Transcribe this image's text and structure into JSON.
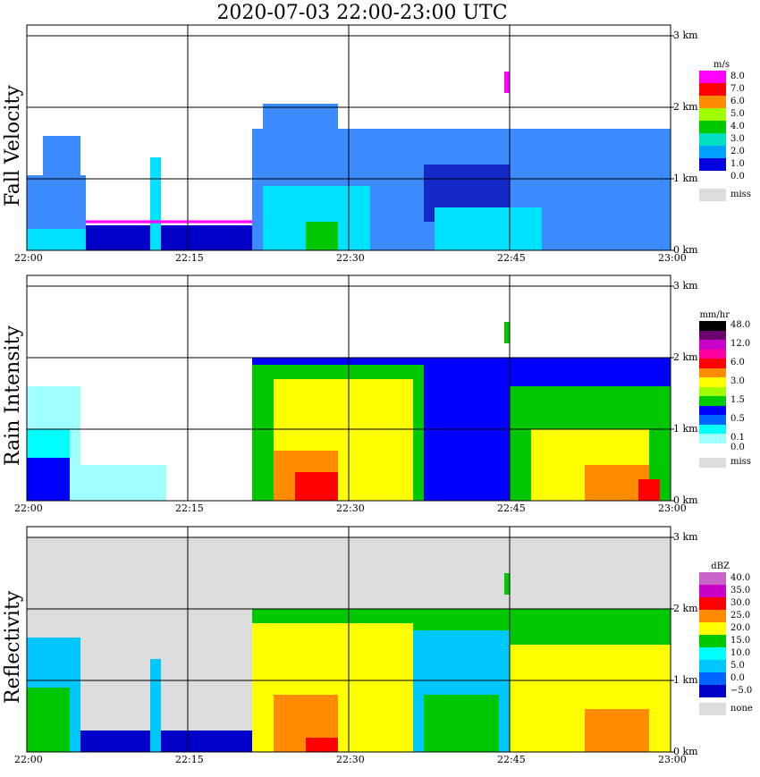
{
  "title": "2020-07-03   22:00-23:00 UTC",
  "chart_data": [
    {
      "type": "heatmap",
      "ylabel": "Fall Velocity",
      "unit": "m/s",
      "x_ticks": [
        "22:00",
        "22:15",
        "22:30",
        "22:45",
        "23:00"
      ],
      "y_ticks": [
        "0 km",
        "1 km",
        "2 km",
        "3 km"
      ],
      "xlim": [
        "22:00",
        "23:00"
      ],
      "ylim_km": [
        0,
        3
      ],
      "grid": true,
      "legend": [
        {
          "label": "8.0",
          "color": "#ff00ff"
        },
        {
          "label": "7.0",
          "color": "#ff0000"
        },
        {
          "label": "6.0",
          "color": "#ff8c00"
        },
        {
          "label": "5.0",
          "color": "#a0ff00"
        },
        {
          "label": "4.0",
          "color": "#00c800"
        },
        {
          "label": "3.0",
          "color": "#00e0c0"
        },
        {
          "label": "2.0",
          "color": "#00a0ff"
        },
        {
          "label": "1.0",
          "color": "#0000e0"
        },
        {
          "label": "0.0",
          "color": "#ffffff"
        },
        {
          "label": "miss",
          "color": "#dcdcdc"
        }
      ],
      "background": "#ffffff",
      "fills": [
        {
          "t0": 0,
          "t1": 5.5,
          "h0": 0,
          "h1": 1.05,
          "color": "#3c8cff"
        },
        {
          "t0": 1.5,
          "t1": 5,
          "h0": 0.6,
          "h1": 1.6,
          "color": "#3c8cff"
        },
        {
          "t0": 0,
          "t1": 6,
          "h0": 0,
          "h1": 0.3,
          "color": "#00e0ff"
        },
        {
          "t0": 5.5,
          "t1": 21,
          "h0": 0,
          "h1": 0.35,
          "color": "#0000c8"
        },
        {
          "t0": 11.5,
          "t1": 12.5,
          "h0": 0,
          "h1": 1.3,
          "color": "#00e0ff"
        },
        {
          "t0": 5.5,
          "t1": 21,
          "h0": 0.38,
          "h1": 0.42,
          "color": "#ff00ff"
        },
        {
          "t0": 21,
          "t1": 60,
          "h0": 0,
          "h1": 1.7,
          "color": "#3c8cff"
        },
        {
          "t0": 22,
          "t1": 29,
          "h0": 0.9,
          "h1": 2.05,
          "color": "#3c8cff"
        },
        {
          "t0": 37,
          "t1": 45,
          "h0": 0.4,
          "h1": 1.2,
          "color": "#1428c8"
        },
        {
          "t0": 22,
          "t1": 32,
          "h0": 0,
          "h1": 0.9,
          "color": "#00e0ff"
        },
        {
          "t0": 38,
          "t1": 48,
          "h0": 0,
          "h1": 0.6,
          "color": "#00e0ff"
        },
        {
          "t0": 26,
          "t1": 29,
          "h0": 0,
          "h1": 0.4,
          "color": "#00c800"
        },
        {
          "t0": 44.5,
          "t1": 45,
          "h0": 2.2,
          "h1": 2.5,
          "color": "#ff00ff"
        }
      ]
    },
    {
      "type": "heatmap",
      "ylabel": "Rain Intensity",
      "unit": "mm/hr",
      "x_ticks": [
        "22:00",
        "22:15",
        "22:30",
        "22:45",
        "23:00"
      ],
      "y_ticks": [
        "0 km",
        "1 km",
        "2 km",
        "3 km"
      ],
      "xlim": [
        "22:00",
        "23:00"
      ],
      "ylim_km": [
        0,
        3
      ],
      "grid": true,
      "legend": [
        {
          "label": "48.0",
          "color": "#000000"
        },
        {
          "label": "",
          "color": "#6e006e"
        },
        {
          "label": "12.0",
          "color": "#c800c8"
        },
        {
          "label": "",
          "color": "#ff00a0"
        },
        {
          "label": "6.0",
          "color": "#ff0000"
        },
        {
          "label": "",
          "color": "#ff8c00"
        },
        {
          "label": "3.0",
          "color": "#ffff00"
        },
        {
          "label": "",
          "color": "#a0ff00"
        },
        {
          "label": "1.5",
          "color": "#00c800"
        },
        {
          "label": "",
          "color": "#0000ff"
        },
        {
          "label": "0.5",
          "color": "#0064ff"
        },
        {
          "label": "",
          "color": "#00ffff"
        },
        {
          "label": "0.1",
          "color": "#a0ffff"
        },
        {
          "label": "0.0",
          "color": "#ffffff"
        },
        {
          "label": "miss",
          "color": "#dcdcdc"
        }
      ],
      "background": "#ffffff",
      "fills": [
        {
          "t0": 0,
          "t1": 5,
          "h0": 0,
          "h1": 1.6,
          "color": "#a0ffff"
        },
        {
          "t0": 0,
          "t1": 4,
          "h0": 0,
          "h1": 1.0,
          "color": "#00ffff"
        },
        {
          "t0": 0,
          "t1": 4,
          "h0": 0,
          "h1": 0.6,
          "color": "#0000ff"
        },
        {
          "t0": 4,
          "t1": 13,
          "h0": 0,
          "h1": 0.5,
          "color": "#a0ffff"
        },
        {
          "t0": 21,
          "t1": 60,
          "h0": 0,
          "h1": 2.0,
          "color": "#0000ff"
        },
        {
          "t0": 21,
          "t1": 37,
          "h0": 0,
          "h1": 1.9,
          "color": "#00c800"
        },
        {
          "t0": 23,
          "t1": 36,
          "h0": 0,
          "h1": 1.7,
          "color": "#ffff00"
        },
        {
          "t0": 23,
          "t1": 29,
          "h0": 0,
          "h1": 0.7,
          "color": "#ff8c00"
        },
        {
          "t0": 25,
          "t1": 29,
          "h0": 0,
          "h1": 0.4,
          "color": "#ff0000"
        },
        {
          "t0": 45,
          "t1": 60,
          "h0": 0,
          "h1": 1.6,
          "color": "#00c800"
        },
        {
          "t0": 47,
          "t1": 58,
          "h0": 0,
          "h1": 1.0,
          "color": "#ffff00"
        },
        {
          "t0": 52,
          "t1": 58,
          "h0": 0,
          "h1": 0.5,
          "color": "#ff8c00"
        },
        {
          "t0": 57,
          "t1": 59,
          "h0": 0,
          "h1": 0.3,
          "color": "#ff0000"
        },
        {
          "t0": 44.5,
          "t1": 45,
          "h0": 2.2,
          "h1": 2.5,
          "color": "#00c800"
        }
      ]
    },
    {
      "type": "heatmap",
      "ylabel": "Reflectivity",
      "unit": "dBZ",
      "x_ticks": [
        "22:00",
        "22:15",
        "22:30",
        "22:45",
        "23:00"
      ],
      "y_ticks": [
        "0 km",
        "1 km",
        "2 km",
        "3 km"
      ],
      "xlim": [
        "22:00",
        "23:00"
      ],
      "ylim_km": [
        0,
        3
      ],
      "grid": true,
      "legend": [
        {
          "label": "40.0",
          "color": "#c864c8"
        },
        {
          "label": "35.0",
          "color": "#c800c8"
        },
        {
          "label": "30.0",
          "color": "#ff0000"
        },
        {
          "label": "25.0",
          "color": "#ff8c00"
        },
        {
          "label": "20.0",
          "color": "#ffff00"
        },
        {
          "label": "15.0",
          "color": "#00c800"
        },
        {
          "label": "10.0",
          "color": "#00ffff"
        },
        {
          "label": "5.0",
          "color": "#00c8ff"
        },
        {
          "label": "0.0",
          "color": "#0064ff"
        },
        {
          "label": "−5.0",
          "color": "#0000c8"
        },
        {
          "label": "none",
          "color": "#dcdcdc"
        }
      ],
      "background": "#dcdcdc",
      "fills": [
        {
          "t0": 0,
          "t1": 5,
          "h0": 0,
          "h1": 1.6,
          "color": "#00c8ff"
        },
        {
          "t0": 0,
          "t1": 4,
          "h0": 0,
          "h1": 0.9,
          "color": "#00c800"
        },
        {
          "t0": 5,
          "t1": 21,
          "h0": 0,
          "h1": 0.3,
          "color": "#0000c8"
        },
        {
          "t0": 11.5,
          "t1": 12.5,
          "h0": 0,
          "h1": 1.3,
          "color": "#00c8ff"
        },
        {
          "t0": 21,
          "t1": 60,
          "h0": 0,
          "h1": 2.0,
          "color": "#00c800"
        },
        {
          "t0": 21,
          "t1": 36,
          "h0": 0,
          "h1": 1.8,
          "color": "#ffff00"
        },
        {
          "t0": 23,
          "t1": 29,
          "h0": 0,
          "h1": 0.8,
          "color": "#ff8c00"
        },
        {
          "t0": 26,
          "t1": 29,
          "h0": 0,
          "h1": 0.2,
          "color": "#ff0000"
        },
        {
          "t0": 36,
          "t1": 45,
          "h0": 0,
          "h1": 1.7,
          "color": "#00c8ff"
        },
        {
          "t0": 37,
          "t1": 44,
          "h0": 0,
          "h1": 0.8,
          "color": "#00c800"
        },
        {
          "t0": 45,
          "t1": 60,
          "h0": 0,
          "h1": 1.5,
          "color": "#ffff00"
        },
        {
          "t0": 52,
          "t1": 58,
          "h0": 0,
          "h1": 0.6,
          "color": "#ff8c00"
        },
        {
          "t0": 44.5,
          "t1": 45,
          "h0": 2.2,
          "h1": 2.5,
          "color": "#00c800"
        }
      ]
    }
  ]
}
